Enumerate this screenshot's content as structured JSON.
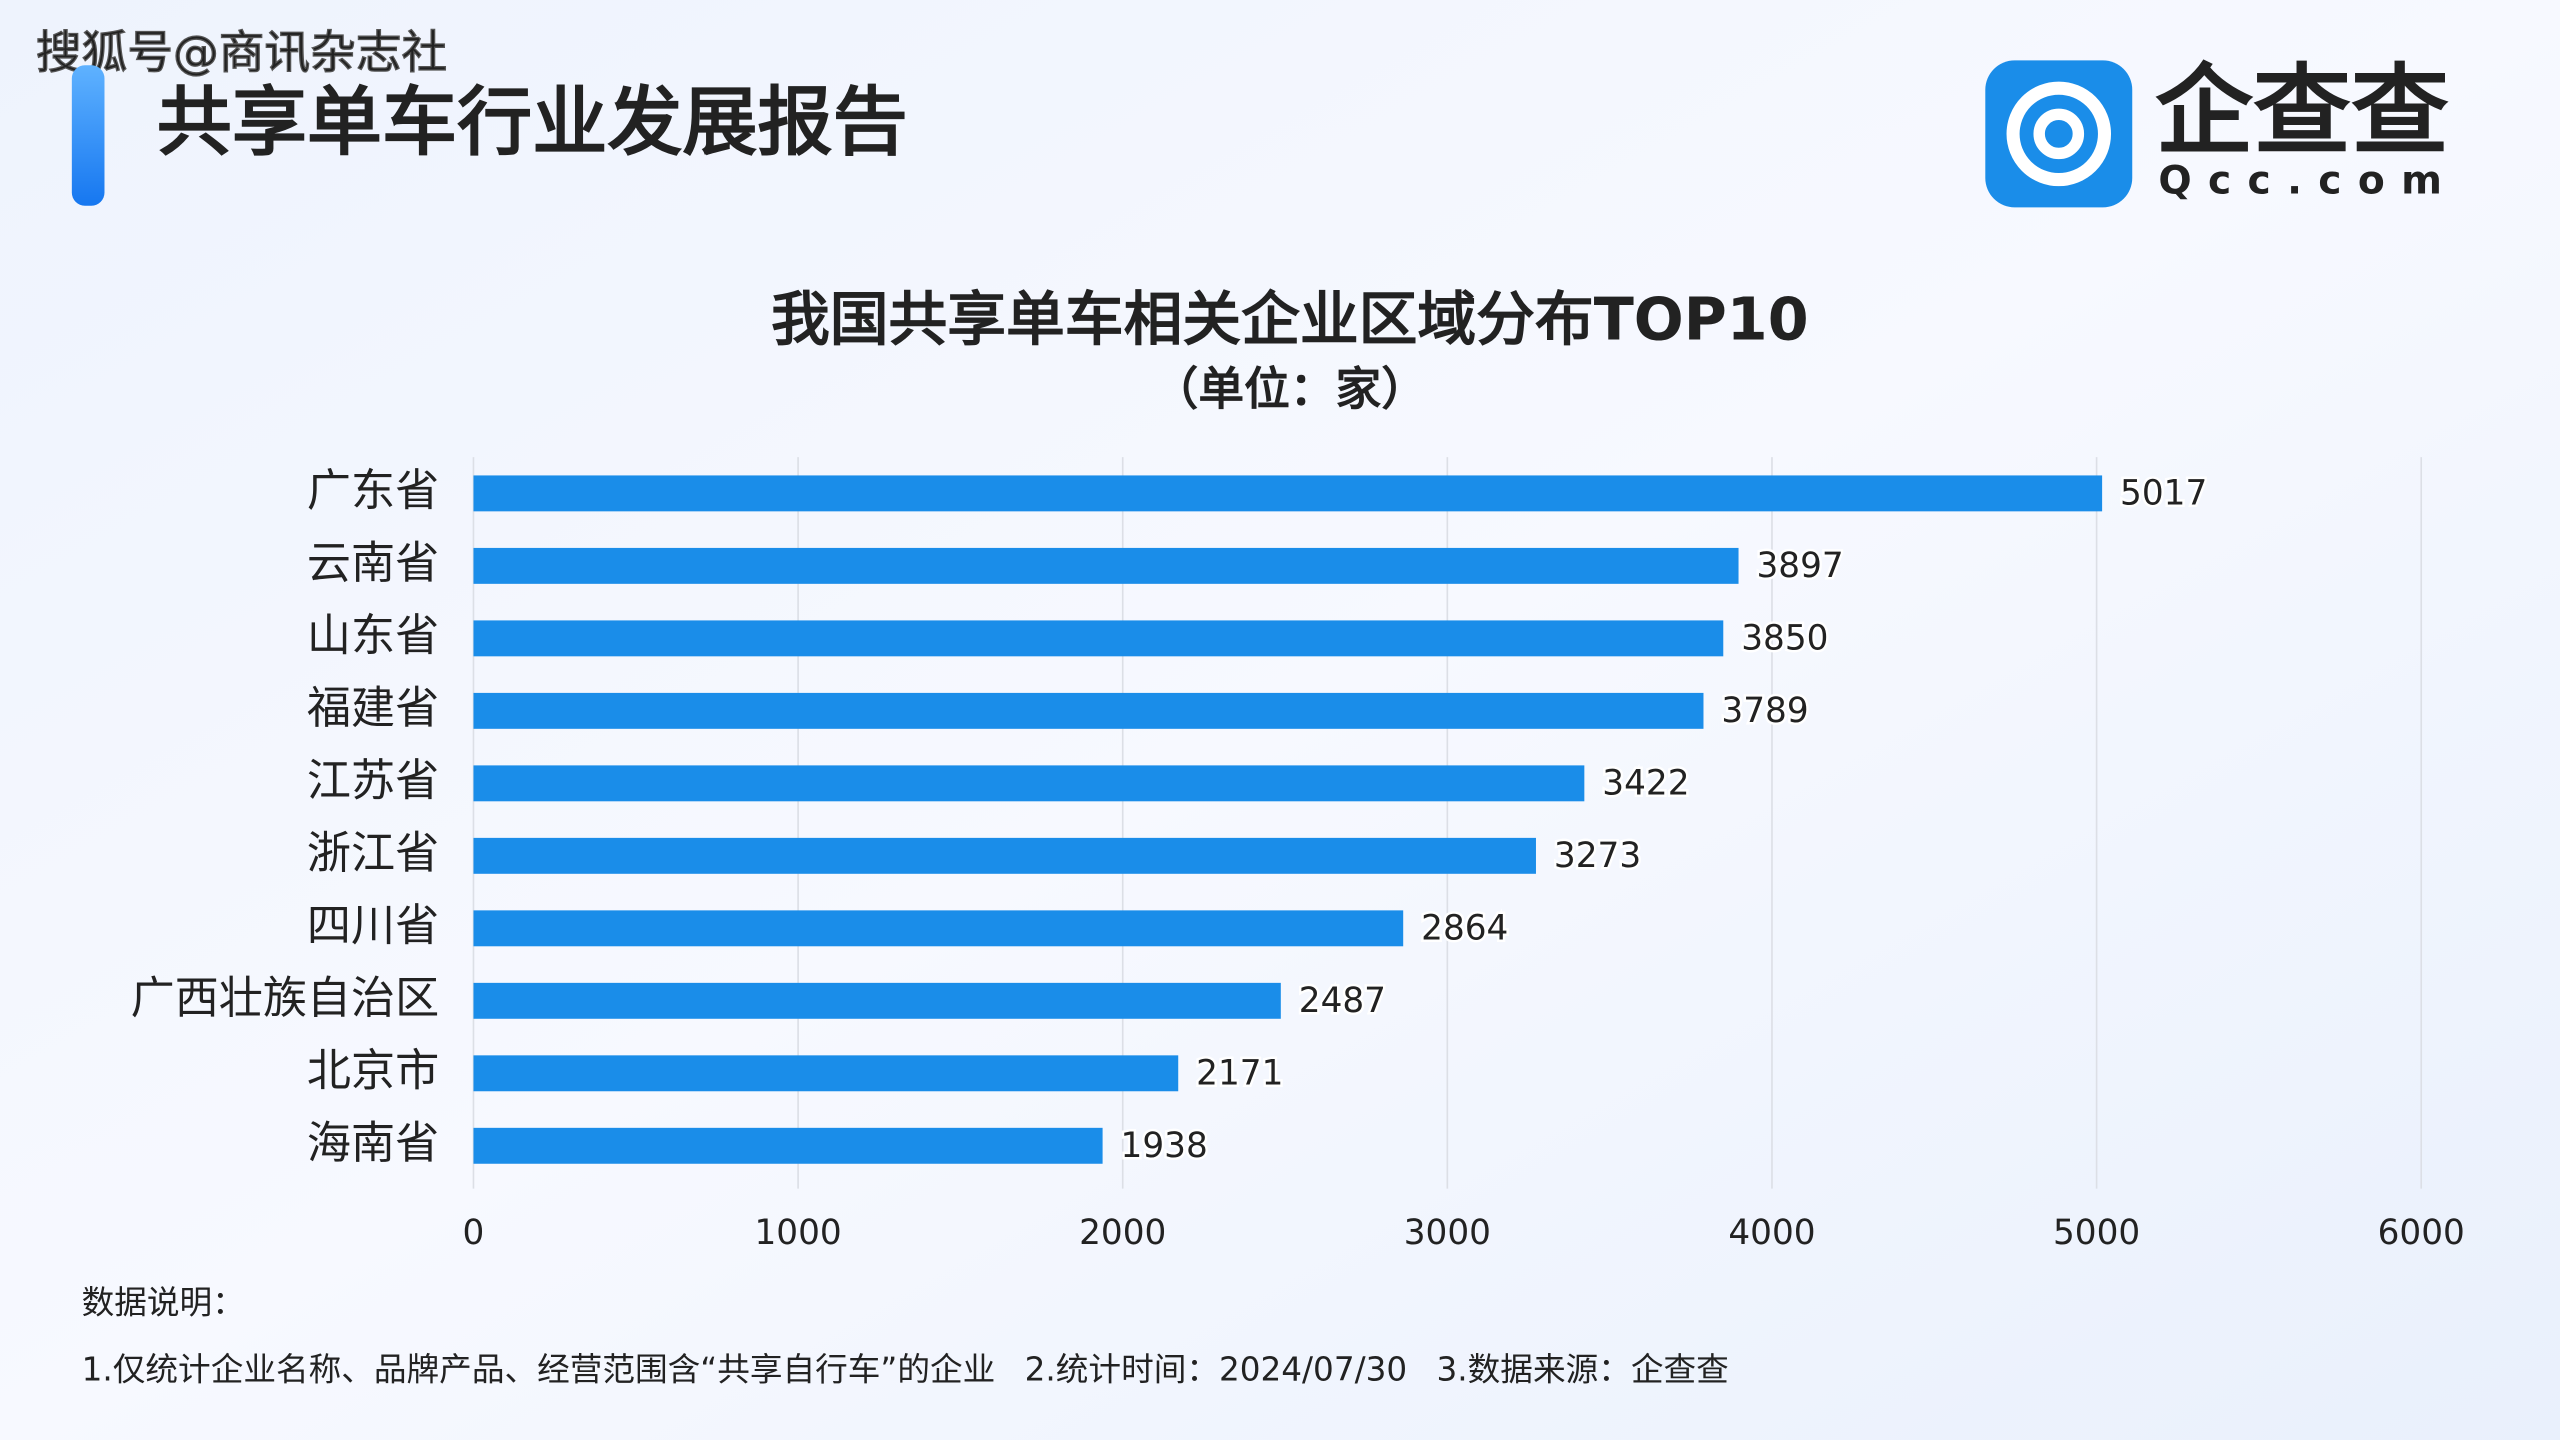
{
  "watermark": "搜狐号@商讯杂志社",
  "header": {
    "title": "共享单车行业发展报告"
  },
  "logo": {
    "name": "企查查",
    "domain": "Qcc.com"
  },
  "chart_data": {
    "type": "bar",
    "orientation": "horizontal",
    "title": "我国共享单车相关企业区域分布TOP10",
    "subtitle": "（单位：家）",
    "categories": [
      "广东省",
      "云南省",
      "山东省",
      "福建省",
      "江苏省",
      "浙江省",
      "四川省",
      "广西壮族自治区",
      "北京市",
      "海南省"
    ],
    "values": [
      5017,
      3897,
      3850,
      3789,
      3422,
      3273,
      2864,
      2487,
      2171,
      1938
    ],
    "color": "#1a8de9",
    "xlim": [
      0,
      6000
    ],
    "xticks": [
      0,
      1000,
      2000,
      3000,
      4000,
      5000,
      6000
    ],
    "grid": true
  },
  "notes": {
    "title": "数据说明：",
    "items": [
      "1.仅统计企业名称、品牌产品、经营范围含“共享自行车”的企业",
      "2.统计时间：2024/07/30",
      "3.数据来源：企查查"
    ]
  }
}
